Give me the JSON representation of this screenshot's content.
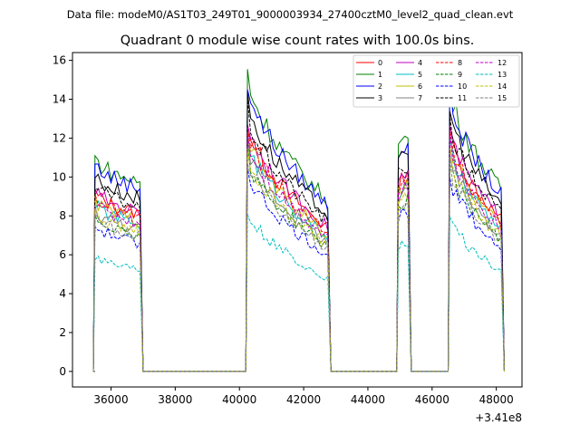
{
  "chart_data": {
    "type": "line",
    "suptitle": "Data file: modeM0/AS1T03_249T01_9000003934_27400cztM0_level2_quad_clean.evt",
    "title": "Quadrant 0 module wise count rates with 100.0s bins.",
    "xlabel": "",
    "ylabel": "",
    "x_offset_label": "+3.41e8",
    "xlim": [
      34800,
      48800
    ],
    "ylim": [
      -0.8,
      16.4
    ],
    "x_ticks": [
      36000,
      38000,
      40000,
      42000,
      44000,
      46000,
      48000
    ],
    "y_ticks": [
      0,
      2,
      4,
      6,
      8,
      10,
      12,
      14,
      16
    ],
    "legend_position": "top-right",
    "segments": [
      {
        "start": 35500,
        "end": 36900
      },
      {
        "start": 40250,
        "end": 42750
      },
      {
        "start": 44950,
        "end": 45250
      },
      {
        "start": 46550,
        "end": 48150
      }
    ],
    "series": [
      {
        "name": "0",
        "color": "#ff0000",
        "dash": false,
        "level": 9.2
      },
      {
        "name": "1",
        "color": "#008000",
        "dash": false,
        "level": 11.0
      },
      {
        "name": "2",
        "color": "#0000ff",
        "dash": false,
        "level": 10.7
      },
      {
        "name": "3",
        "color": "#000000",
        "dash": false,
        "level": 10.1
      },
      {
        "name": "4",
        "color": "#bf00bf",
        "dash": false,
        "level": 9.3
      },
      {
        "name": "5",
        "color": "#00bfbf",
        "dash": false,
        "level": 8.6
      },
      {
        "name": "6",
        "color": "#bfbf00",
        "dash": false,
        "level": 8.8
      },
      {
        "name": "7",
        "color": "#808080",
        "dash": false,
        "level": 8.3
      },
      {
        "name": "8",
        "color": "#ff0000",
        "dash": true,
        "level": 9.0
      },
      {
        "name": "9",
        "color": "#008000",
        "dash": true,
        "level": 8.0
      },
      {
        "name": "10",
        "color": "#0000ff",
        "dash": true,
        "level": 7.5
      },
      {
        "name": "11",
        "color": "#000000",
        "dash": true,
        "level": 9.6
      },
      {
        "name": "12",
        "color": "#bf00bf",
        "dash": true,
        "level": 8.7
      },
      {
        "name": "13",
        "color": "#00bfbf",
        "dash": true,
        "level": 6.0
      },
      {
        "name": "14",
        "color": "#bfbf00",
        "dash": true,
        "level": 8.1
      },
      {
        "name": "15",
        "color": "#808080",
        "dash": true,
        "level": 7.9
      }
    ]
  }
}
